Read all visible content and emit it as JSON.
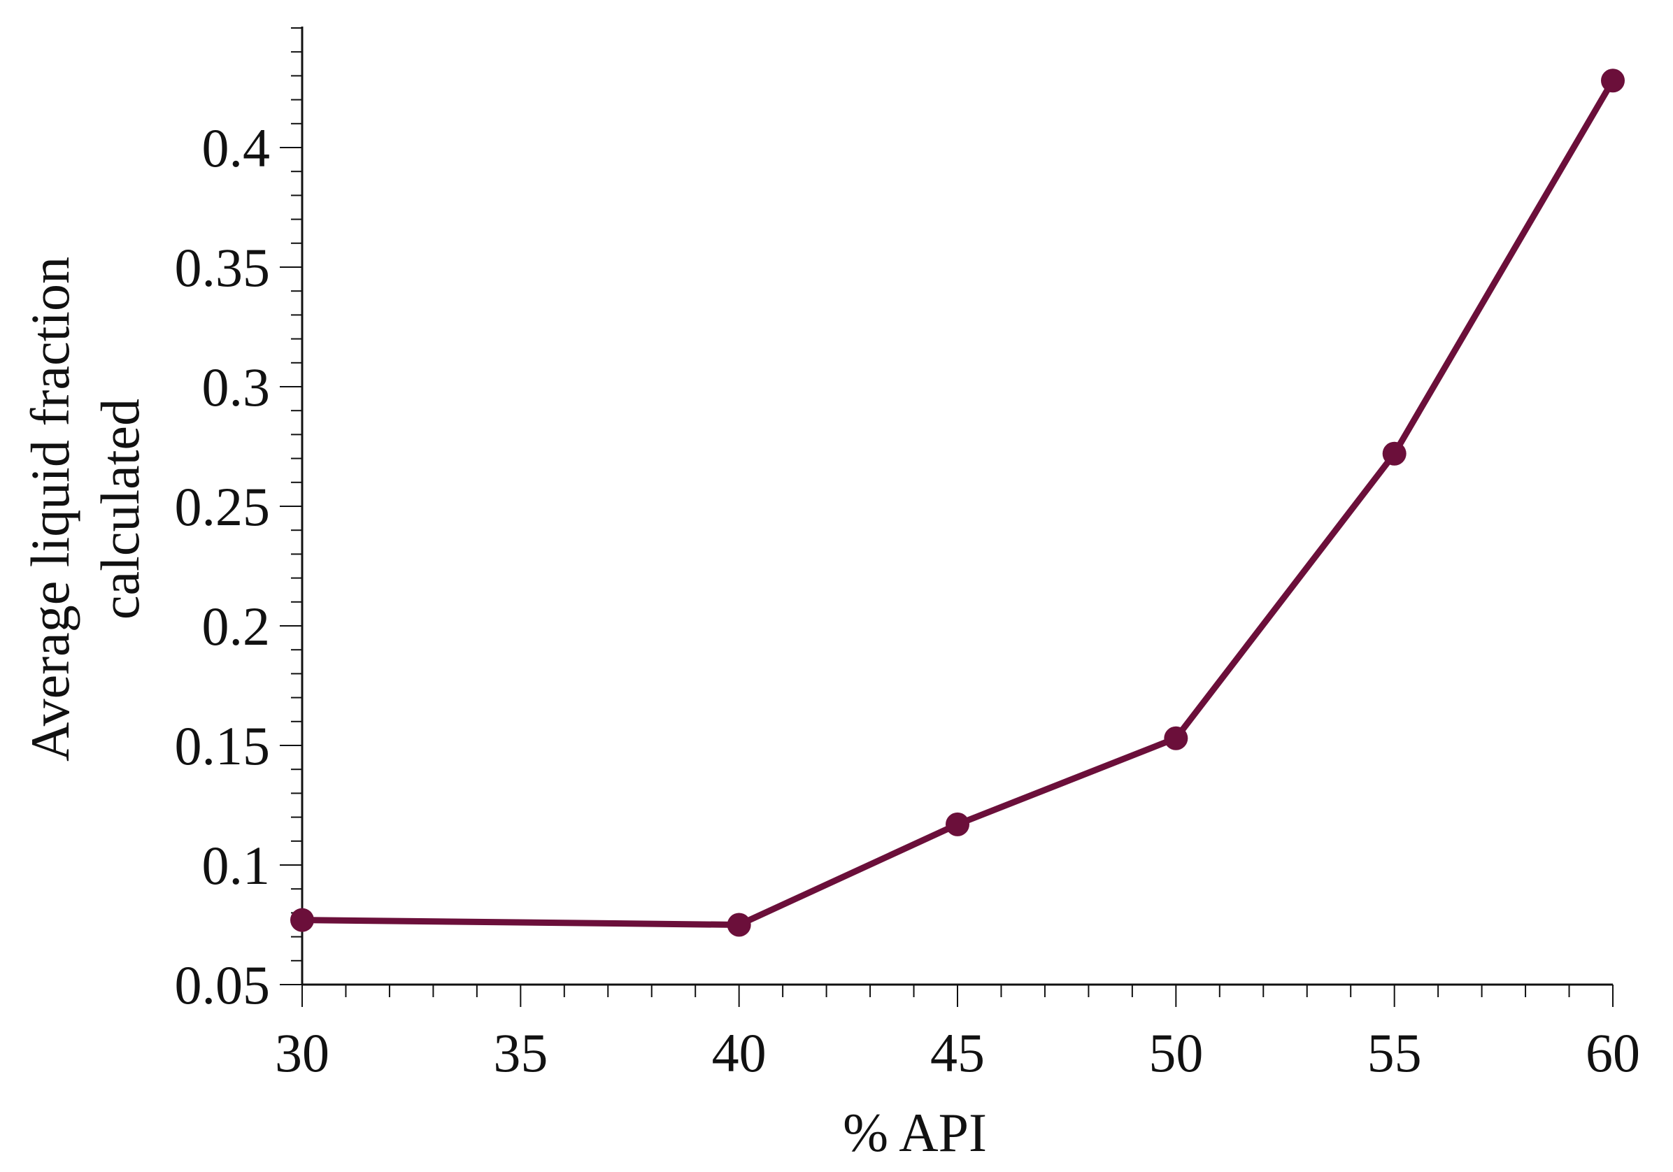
{
  "chart_data": {
    "type": "line",
    "title": "",
    "xlabel": "% API",
    "ylabel_lines": [
      "Average liquid fraction",
      "calculated"
    ],
    "xlim": [
      30,
      60
    ],
    "ylim": [
      0.05,
      0.45
    ],
    "x_ticks": [
      30,
      35,
      40,
      45,
      50,
      55,
      60
    ],
    "x_tick_labels": [
      "30",
      "35",
      "40",
      "45",
      "50",
      "55",
      "60"
    ],
    "y_ticks": [
      0.05,
      0.1,
      0.15,
      0.2,
      0.25,
      0.3,
      0.35,
      0.4
    ],
    "y_tick_labels": [
      "0.05",
      "0.1",
      "0.15",
      "0.2",
      "0.25",
      "0.3",
      "0.35",
      "0.4"
    ],
    "x_minor_step": 1,
    "y_minor_step": 0.01,
    "grid": false,
    "legend": "none",
    "series": [
      {
        "color": "#6b0f3a",
        "marker": "circle",
        "x": [
          30,
          40,
          45,
          50,
          55,
          60
        ],
        "y": [
          0.077,
          0.075,
          0.117,
          0.153,
          0.272,
          0.428
        ]
      }
    ]
  }
}
